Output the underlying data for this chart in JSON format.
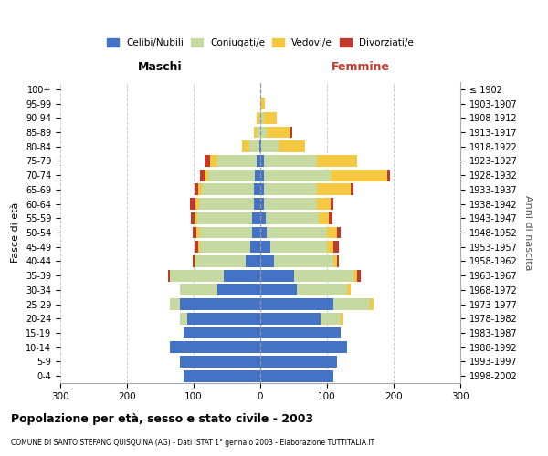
{
  "age_groups": [
    "0-4",
    "5-9",
    "10-14",
    "15-19",
    "20-24",
    "25-29",
    "30-34",
    "35-39",
    "40-44",
    "45-49",
    "50-54",
    "55-59",
    "60-64",
    "65-69",
    "70-74",
    "75-79",
    "80-84",
    "85-89",
    "90-94",
    "95-99",
    "100+"
  ],
  "birth_years": [
    "1998-2002",
    "1993-1997",
    "1988-1992",
    "1983-1987",
    "1978-1982",
    "1973-1977",
    "1968-1972",
    "1963-1967",
    "1958-1962",
    "1953-1957",
    "1948-1952",
    "1943-1947",
    "1938-1942",
    "1933-1937",
    "1928-1932",
    "1923-1927",
    "1918-1922",
    "1913-1917",
    "1908-1912",
    "1903-1907",
    "≤ 1902"
  ],
  "colors": {
    "celibi": "#4472c4",
    "coniugati": "#c5d9a0",
    "vedovi": "#f5c842",
    "divorziati": "#c0392b"
  },
  "maschi": {
    "celibi": [
      115,
      120,
      135,
      115,
      110,
      120,
      65,
      55,
      22,
      15,
      13,
      12,
      10,
      10,
      8,
      5,
      2,
      0,
      0,
      0,
      0
    ],
    "coniugati": [
      0,
      0,
      0,
      0,
      10,
      15,
      55,
      80,
      75,
      75,
      78,
      82,
      82,
      78,
      70,
      60,
      15,
      5,
      2,
      0,
      0
    ],
    "vedovi": [
      0,
      0,
      0,
      0,
      0,
      0,
      0,
      0,
      2,
      3,
      5,
      5,
      5,
      5,
      5,
      10,
      10,
      5,
      3,
      0,
      0
    ],
    "divorziati": [
      0,
      0,
      0,
      0,
      0,
      0,
      0,
      3,
      3,
      5,
      5,
      5,
      8,
      5,
      8,
      8,
      0,
      0,
      0,
      0,
      0
    ]
  },
  "femmine": {
    "nubili": [
      110,
      115,
      130,
      120,
      90,
      110,
      55,
      50,
      20,
      15,
      10,
      8,
      5,
      5,
      5,
      5,
      2,
      0,
      0,
      0,
      0
    ],
    "coniugate": [
      0,
      0,
      0,
      0,
      30,
      55,
      75,
      90,
      90,
      85,
      90,
      80,
      80,
      80,
      100,
      80,
      25,
      10,
      5,
      2,
      0
    ],
    "vedove": [
      0,
      0,
      0,
      0,
      5,
      5,
      5,
      5,
      5,
      10,
      15,
      15,
      20,
      50,
      85,
      60,
      40,
      35,
      20,
      5,
      0
    ],
    "divorziate": [
      0,
      0,
      0,
      0,
      0,
      0,
      0,
      5,
      3,
      8,
      5,
      5,
      5,
      5,
      5,
      0,
      0,
      3,
      0,
      0,
      0
    ]
  },
  "title": "Popolazione per età, sesso e stato civile - 2003",
  "subtitle": "COMUNE DI SANTO STEFANO QUISQUINA (AG) - Dati ISTAT 1° gennaio 2003 - Elaborazione TUTTITALIA.IT",
  "xlim": 300,
  "ylabel_left": "Fasce di età",
  "ylabel_right": "Anni di nascita",
  "xlabel_left": "Maschi",
  "xlabel_right": "Femmine",
  "legend_labels": [
    "Celibi/Nubili",
    "Coniugati/e",
    "Vedovi/e",
    "Divorziati/e"
  ]
}
